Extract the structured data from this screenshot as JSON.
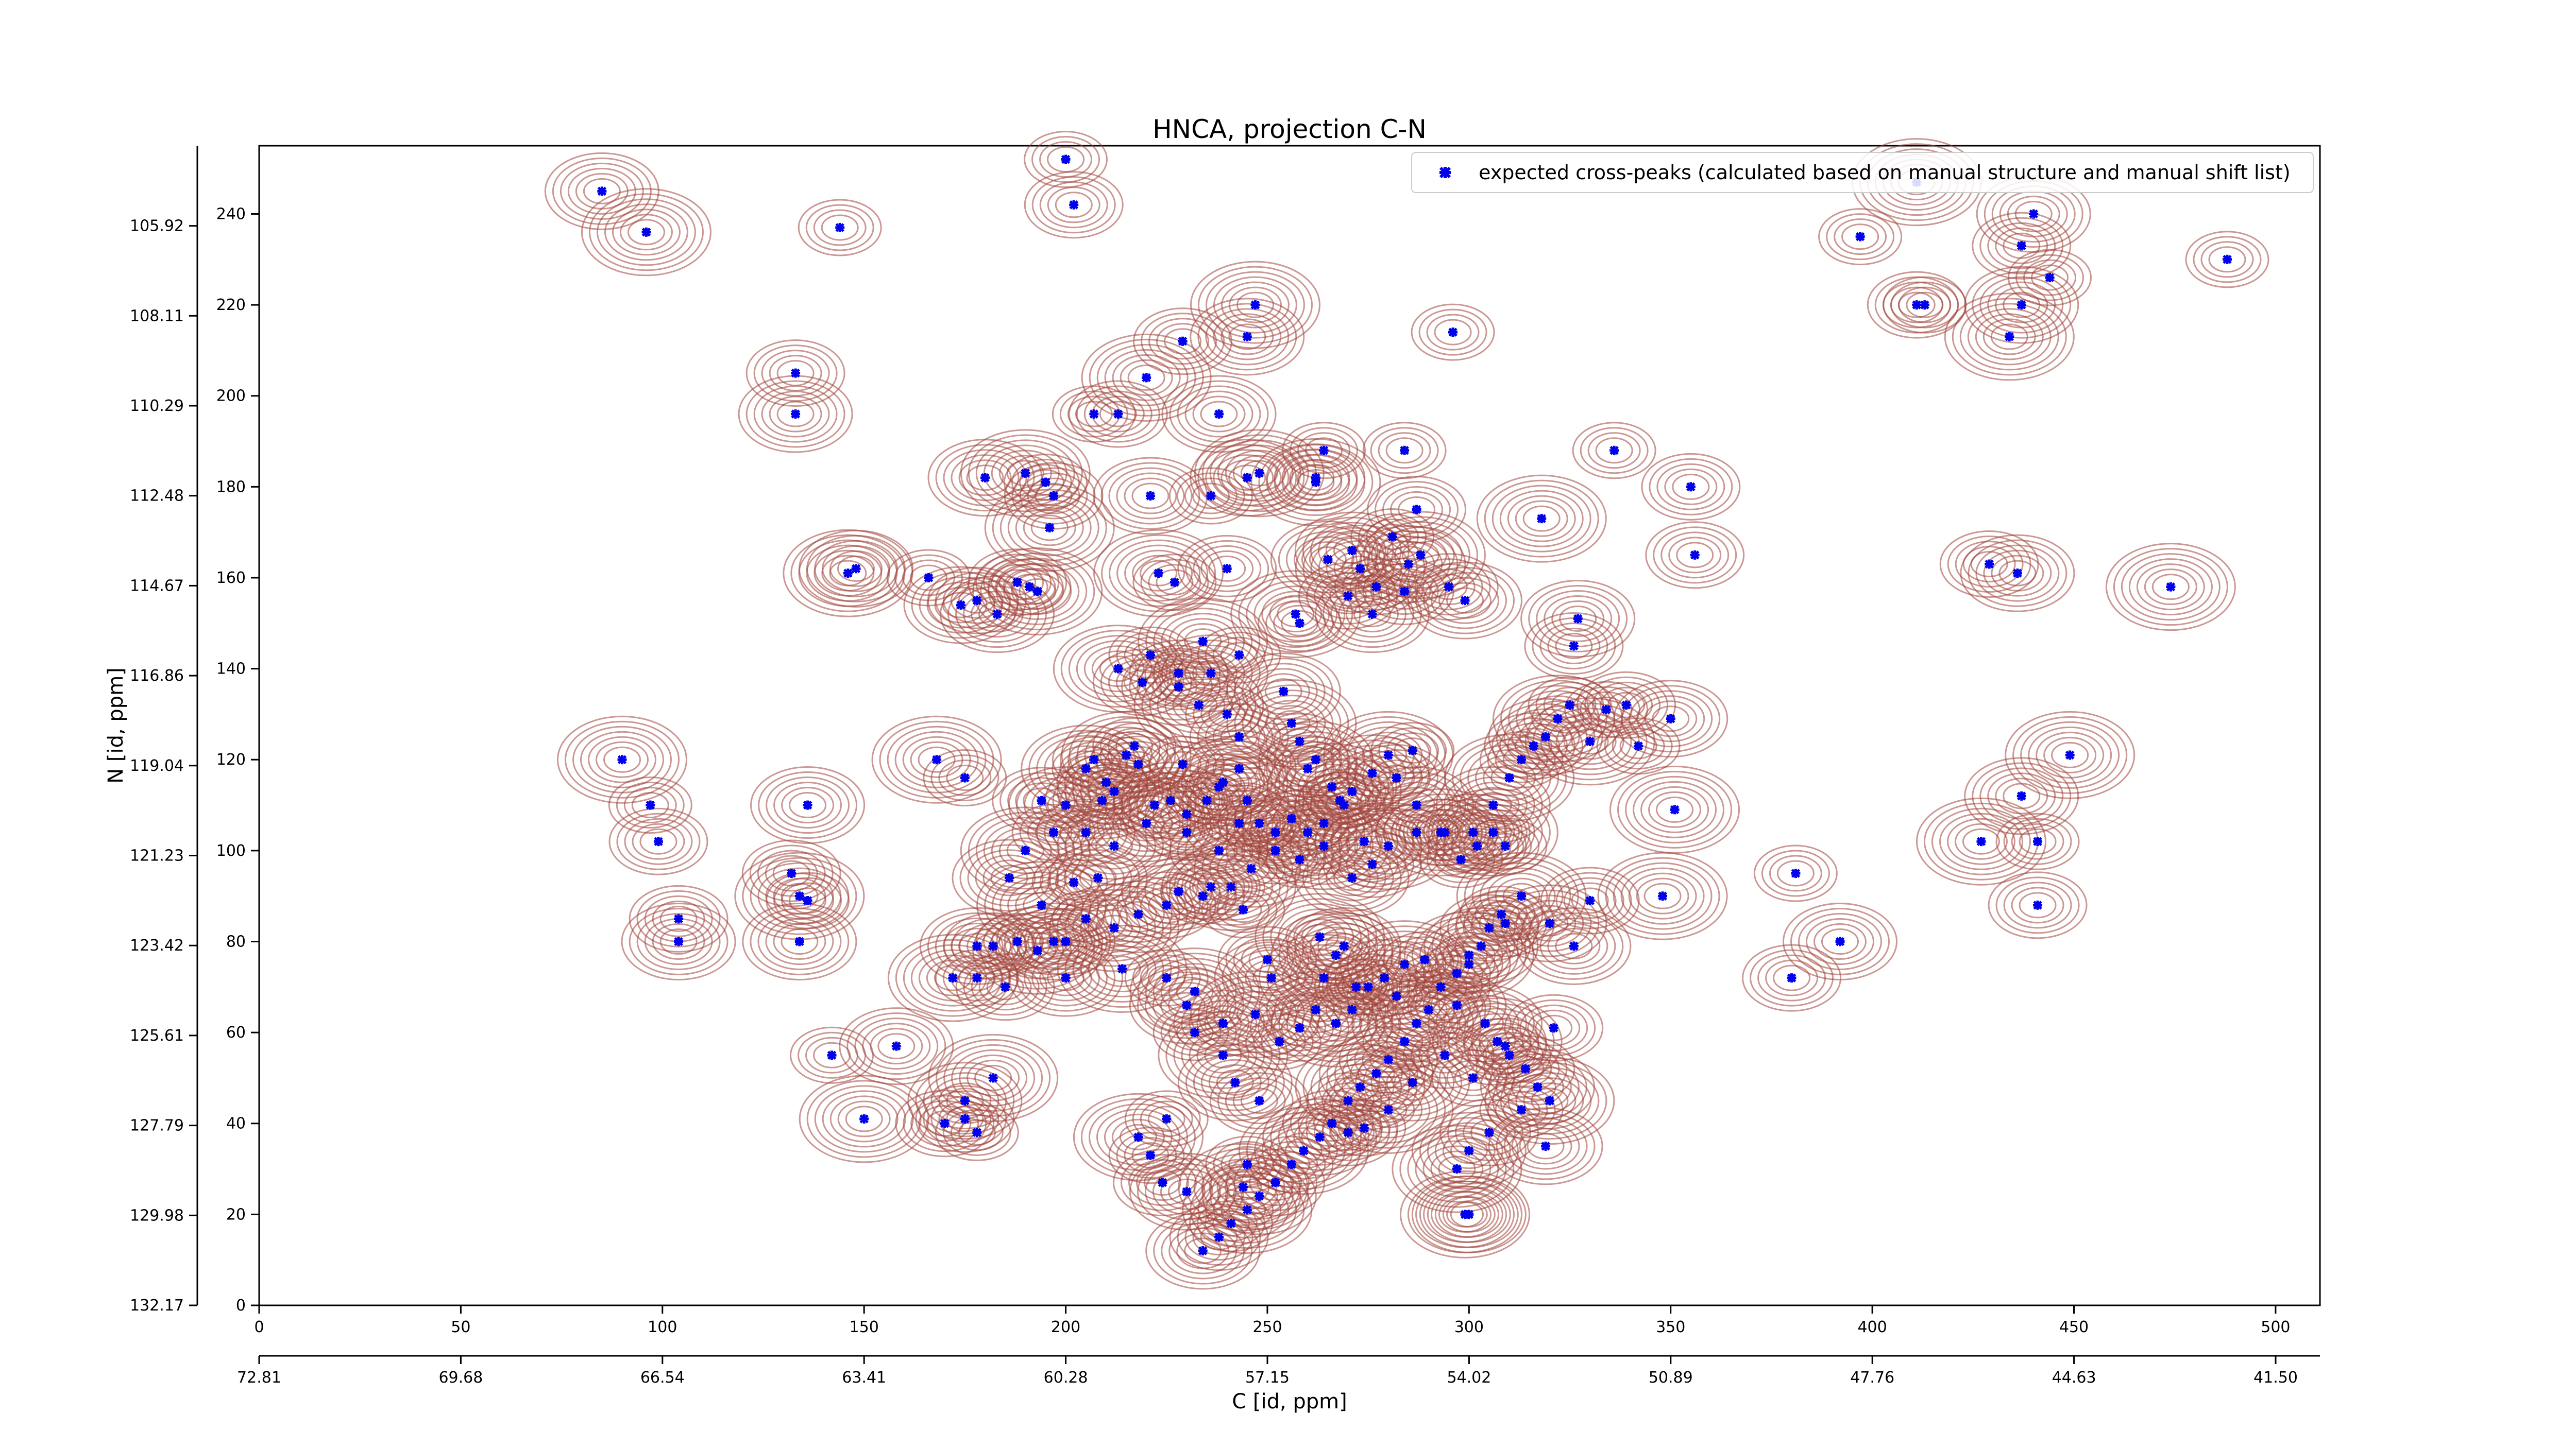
{
  "chart_data": {
    "type": "scatter",
    "title": "HNCA, projection C-N",
    "xlabel": "C [id, ppm]",
    "ylabel": "N [id, ppm]",
    "xlim": [
      0,
      511
    ],
    "ylim": [
      0,
      255
    ],
    "x_ticks": [
      0,
      50,
      100,
      150,
      200,
      250,
      300,
      350,
      400,
      450,
      500
    ],
    "y_ticks": [
      0,
      20,
      40,
      60,
      80,
      100,
      120,
      140,
      160,
      180,
      200,
      220,
      240
    ],
    "x_ppm_ticks": [
      "72.81",
      "69.68",
      "66.54",
      "63.41",
      "60.28",
      "57.15",
      "54.02",
      "50.89",
      "47.76",
      "44.63",
      "41.50"
    ],
    "y_ppm_ticks": [
      "132.17",
      "129.98",
      "127.79",
      "125.61",
      "123.42",
      "121.23",
      "119.04",
      "116.86",
      "114.67",
      "112.48",
      "110.29",
      "108.11",
      "105.92"
    ],
    "legend_position": "top-right",
    "colors": {
      "marker": "#0000ee",
      "contour_positive": "#a0443a",
      "contour_negative": "#2e8b57"
    },
    "series": [
      {
        "name": "expected cross-peaks (calculated based on manual structure and manual shift list)",
        "points": [
          [
            200,
            252
          ],
          [
            202,
            242
          ],
          [
            85,
            245
          ],
          [
            96,
            236
          ],
          [
            144,
            237
          ],
          [
            229,
            212
          ],
          [
            245,
            213
          ],
          [
            247,
            220
          ],
          [
            296,
            214
          ],
          [
            133,
            205
          ],
          [
            133,
            196
          ],
          [
            220,
            204
          ],
          [
            207,
            196
          ],
          [
            213,
            196
          ],
          [
            238,
            196
          ],
          [
            248,
            183
          ],
          [
            264,
            188
          ],
          [
            262,
            182
          ],
          [
            180,
            182
          ],
          [
            190,
            183
          ],
          [
            195,
            181
          ],
          [
            197,
            178
          ],
          [
            221,
            178
          ],
          [
            196,
            171
          ],
          [
            236,
            178
          ],
          [
            240,
            162
          ],
          [
            245,
            182
          ],
          [
            262,
            181
          ],
          [
            284,
            188
          ],
          [
            287,
            175
          ],
          [
            271,
            166
          ],
          [
            273,
            162
          ],
          [
            281,
            169
          ],
          [
            284,
            157
          ],
          [
            285,
            163
          ],
          [
            288,
            165
          ],
          [
            277,
            158
          ],
          [
            270,
            156
          ],
          [
            276,
            152
          ],
          [
            257,
            152
          ],
          [
            258,
            150
          ],
          [
            295,
            158
          ],
          [
            299,
            155
          ],
          [
            318,
            173
          ],
          [
            336,
            188
          ],
          [
            355,
            180
          ],
          [
            265,
            164
          ],
          [
            223,
            161
          ],
          [
            227,
            159
          ],
          [
            356,
            165
          ],
          [
            148,
            162
          ],
          [
            146,
            161
          ],
          [
            166,
            160
          ],
          [
            178,
            155
          ],
          [
            183,
            152
          ],
          [
            193,
            157
          ],
          [
            191,
            158
          ],
          [
            188,
            159
          ],
          [
            174,
            154
          ],
          [
            234,
            146
          ],
          [
            243,
            143
          ],
          [
            228,
            139
          ],
          [
            236,
            139
          ],
          [
            213,
            140
          ],
          [
            221,
            143
          ],
          [
            219,
            137
          ],
          [
            228,
            136
          ],
          [
            233,
            132
          ],
          [
            240,
            130
          ],
          [
            243,
            125
          ],
          [
            254,
            135
          ],
          [
            256,
            128
          ],
          [
            258,
            124
          ],
          [
            260,
            118
          ],
          [
            262,
            120
          ],
          [
            266,
            114
          ],
          [
            268,
            111
          ],
          [
            271,
            113
          ],
          [
            276,
            117
          ],
          [
            280,
            121
          ],
          [
            286,
            122
          ],
          [
            282,
            116
          ],
          [
            287,
            110
          ],
          [
            293,
            104
          ],
          [
            298,
            98
          ],
          [
            302,
            101
          ],
          [
            306,
            110
          ],
          [
            310,
            116
          ],
          [
            313,
            120
          ],
          [
            316,
            123
          ],
          [
            319,
            125
          ],
          [
            322,
            129
          ],
          [
            325,
            132
          ],
          [
            326,
            145
          ],
          [
            327,
            151
          ],
          [
            330,
            124
          ],
          [
            334,
            131
          ],
          [
            339,
            132
          ],
          [
            350,
            129
          ],
          [
            351,
            109
          ],
          [
            342,
            123
          ],
          [
            330,
            89
          ],
          [
            320,
            84
          ],
          [
            313,
            90
          ],
          [
            308,
            86
          ],
          [
            305,
            83
          ],
          [
            303,
            79
          ],
          [
            300,
            77
          ],
          [
            297,
            73
          ],
          [
            293,
            70
          ],
          [
            290,
            65
          ],
          [
            287,
            62
          ],
          [
            284,
            58
          ],
          [
            280,
            54
          ],
          [
            277,
            51
          ],
          [
            273,
            48
          ],
          [
            270,
            45
          ],
          [
            266,
            40
          ],
          [
            263,
            37
          ],
          [
            259,
            34
          ],
          [
            256,
            31
          ],
          [
            252,
            27
          ],
          [
            248,
            24
          ],
          [
            245,
            21
          ],
          [
            241,
            18
          ],
          [
            238,
            15
          ],
          [
            234,
            12
          ],
          [
            232,
            69
          ],
          [
            232,
            60
          ],
          [
            239,
            62
          ],
          [
            230,
            66
          ],
          [
            247,
            64
          ],
          [
            253,
            58
          ],
          [
            258,
            61
          ],
          [
            262,
            65
          ],
          [
            267,
            62
          ],
          [
            271,
            65
          ],
          [
            275,
            70
          ],
          [
            279,
            72
          ],
          [
            284,
            75
          ],
          [
            289,
            76
          ],
          [
            297,
            66
          ],
          [
            304,
            62
          ],
          [
            307,
            58
          ],
          [
            310,
            55
          ],
          [
            314,
            52
          ],
          [
            317,
            48
          ],
          [
            320,
            45
          ],
          [
            313,
            43
          ],
          [
            305,
            38
          ],
          [
            300,
            34
          ],
          [
            297,
            30
          ],
          [
            301,
            50
          ],
          [
            294,
            55
          ],
          [
            286,
            49
          ],
          [
            280,
            43
          ],
          [
            274,
            39
          ],
          [
            270,
            38
          ],
          [
            300,
            20
          ],
          [
            299,
            20
          ],
          [
            309,
            57
          ],
          [
            321,
            61
          ],
          [
            319,
            35
          ],
          [
            218,
            37
          ],
          [
            221,
            33
          ],
          [
            224,
            27
          ],
          [
            230,
            25
          ],
          [
            244,
            26
          ],
          [
            245,
            31
          ],
          [
            248,
            45
          ],
          [
            242,
            49
          ],
          [
            239,
            55
          ],
          [
            225,
            41
          ],
          [
            175,
            41
          ],
          [
            175,
            45
          ],
          [
            182,
            50
          ],
          [
            178,
            38
          ],
          [
            170,
            40
          ],
          [
            158,
            57
          ],
          [
            150,
            41
          ],
          [
            142,
            55
          ],
          [
            132,
            95
          ],
          [
            134,
            80
          ],
          [
            134,
            90
          ],
          [
            136,
            89
          ],
          [
            104,
            85
          ],
          [
            104,
            80
          ],
          [
            90,
            120
          ],
          [
            97,
            110
          ],
          [
            99,
            102
          ],
          [
            136,
            110
          ],
          [
            168,
            120
          ],
          [
            175,
            116
          ],
          [
            194,
            111
          ],
          [
            200,
            110
          ],
          [
            205,
            118
          ],
          [
            207,
            120
          ],
          [
            210,
            115
          ],
          [
            209,
            111
          ],
          [
            215,
            121
          ],
          [
            217,
            123
          ],
          [
            222,
            110
          ],
          [
            226,
            111
          ],
          [
            230,
            108
          ],
          [
            235,
            111
          ],
          [
            238,
            114
          ],
          [
            243,
            118
          ],
          [
            245,
            111
          ],
          [
            248,
            106
          ],
          [
            252,
            104
          ],
          [
            256,
            107
          ],
          [
            260,
            104
          ],
          [
            264,
            106
          ],
          [
            269,
            110
          ],
          [
            274,
            102
          ],
          [
            280,
            101
          ],
          [
            287,
            104
          ],
          [
            294,
            104
          ],
          [
            301,
            104
          ],
          [
            306,
            104
          ],
          [
            309,
            101
          ],
          [
            276,
            97
          ],
          [
            271,
            94
          ],
          [
            264,
            101
          ],
          [
            258,
            98
          ],
          [
            252,
            100
          ],
          [
            246,
            96
          ],
          [
            241,
            92
          ],
          [
            234,
            90
          ],
          [
            225,
            88
          ],
          [
            218,
            86
          ],
          [
            212,
            83
          ],
          [
            205,
            85
          ],
          [
            200,
            80
          ],
          [
            197,
            80
          ],
          [
            193,
            78
          ],
          [
            188,
            80
          ],
          [
            182,
            79
          ],
          [
            178,
            79
          ],
          [
            194,
            88
          ],
          [
            202,
            93
          ],
          [
            208,
            94
          ],
          [
            186,
            94
          ],
          [
            190,
            100
          ],
          [
            197,
            104
          ],
          [
            205,
            104
          ],
          [
            212,
            101
          ],
          [
            220,
            106
          ],
          [
            230,
            104
          ],
          [
            238,
            100
          ],
          [
            243,
            106
          ],
          [
            239,
            115
          ],
          [
            229,
            119
          ],
          [
            218,
            119
          ],
          [
            212,
            113
          ],
          [
            263,
            81
          ],
          [
            244,
            87
          ],
          [
            236,
            92
          ],
          [
            228,
            91
          ],
          [
            172,
            72
          ],
          [
            178,
            72
          ],
          [
            185,
            70
          ],
          [
            200,
            72
          ],
          [
            214,
            74
          ],
          [
            225,
            72
          ],
          [
            250,
            76
          ],
          [
            251,
            72
          ],
          [
            264,
            72
          ],
          [
            272,
            70
          ],
          [
            282,
            68
          ],
          [
            269,
            79
          ],
          [
            267,
            77
          ],
          [
            300,
            75
          ],
          [
            309,
            84
          ],
          [
            326,
            79
          ],
          [
            348,
            90
          ],
          [
            381,
            95
          ],
          [
            380,
            72
          ],
          [
            392,
            80
          ],
          [
            427,
            102
          ],
          [
            441,
            102
          ],
          [
            441,
            88
          ],
          [
            437,
            112
          ],
          [
            449,
            121
          ],
          [
            413,
            220
          ],
          [
            411,
            220
          ],
          [
            437,
            220
          ],
          [
            434,
            213
          ],
          [
            444,
            226
          ],
          [
            437,
            233
          ],
          [
            440,
            240
          ],
          [
            411,
            247
          ],
          [
            397,
            235
          ],
          [
            429,
            163
          ],
          [
            436,
            161
          ],
          [
            474,
            158
          ],
          [
            488,
            230
          ]
        ]
      }
    ]
  }
}
